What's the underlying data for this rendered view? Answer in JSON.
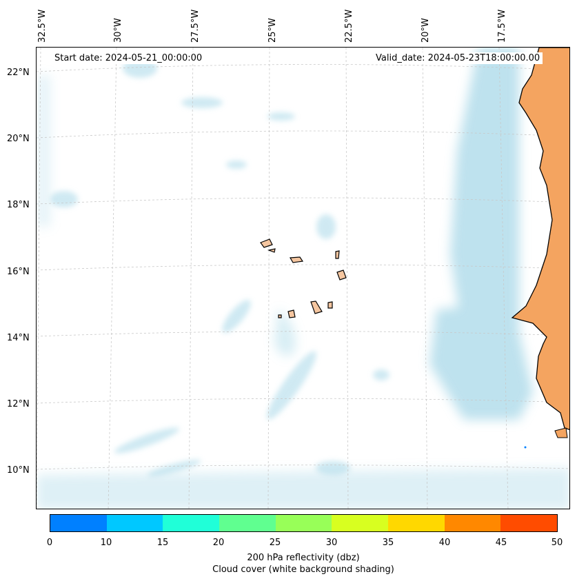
{
  "header": {
    "start_date": "Start date: 2024-05-21_00:00:00",
    "valid_date": "Valid_date: 2024-05-23T18:00:00.00"
  },
  "longitude_labels": [
    "32.5°W",
    "30°W",
    "27.5°W",
    "25°W",
    "22.5°W",
    "20°W",
    "17.5°W"
  ],
  "latitude_labels": [
    "22°N",
    "20°N",
    "18°N",
    "16°N",
    "14°N",
    "12°N",
    "10°N"
  ],
  "colorbar": {
    "ticks": [
      "0",
      "10",
      "15",
      "20",
      "25",
      "30",
      "35",
      "40",
      "45",
      "50"
    ],
    "colors": [
      "#0080ff",
      "#00c8ff",
      "#20ffd8",
      "#60ff90",
      "#98ff58",
      "#d8ff20",
      "#ffd800",
      "#ff8800",
      "#ff4c00"
    ],
    "label_line1": "200 hPa reflectivity (dbz)",
    "label_line2": "Cloud cover (white background shading)"
  },
  "map": {
    "land_color": "#f4a460",
    "island_color": "#f5c6a0",
    "cloud_color": "#a8d8e8",
    "grid_color": "#c8c8c8"
  }
}
